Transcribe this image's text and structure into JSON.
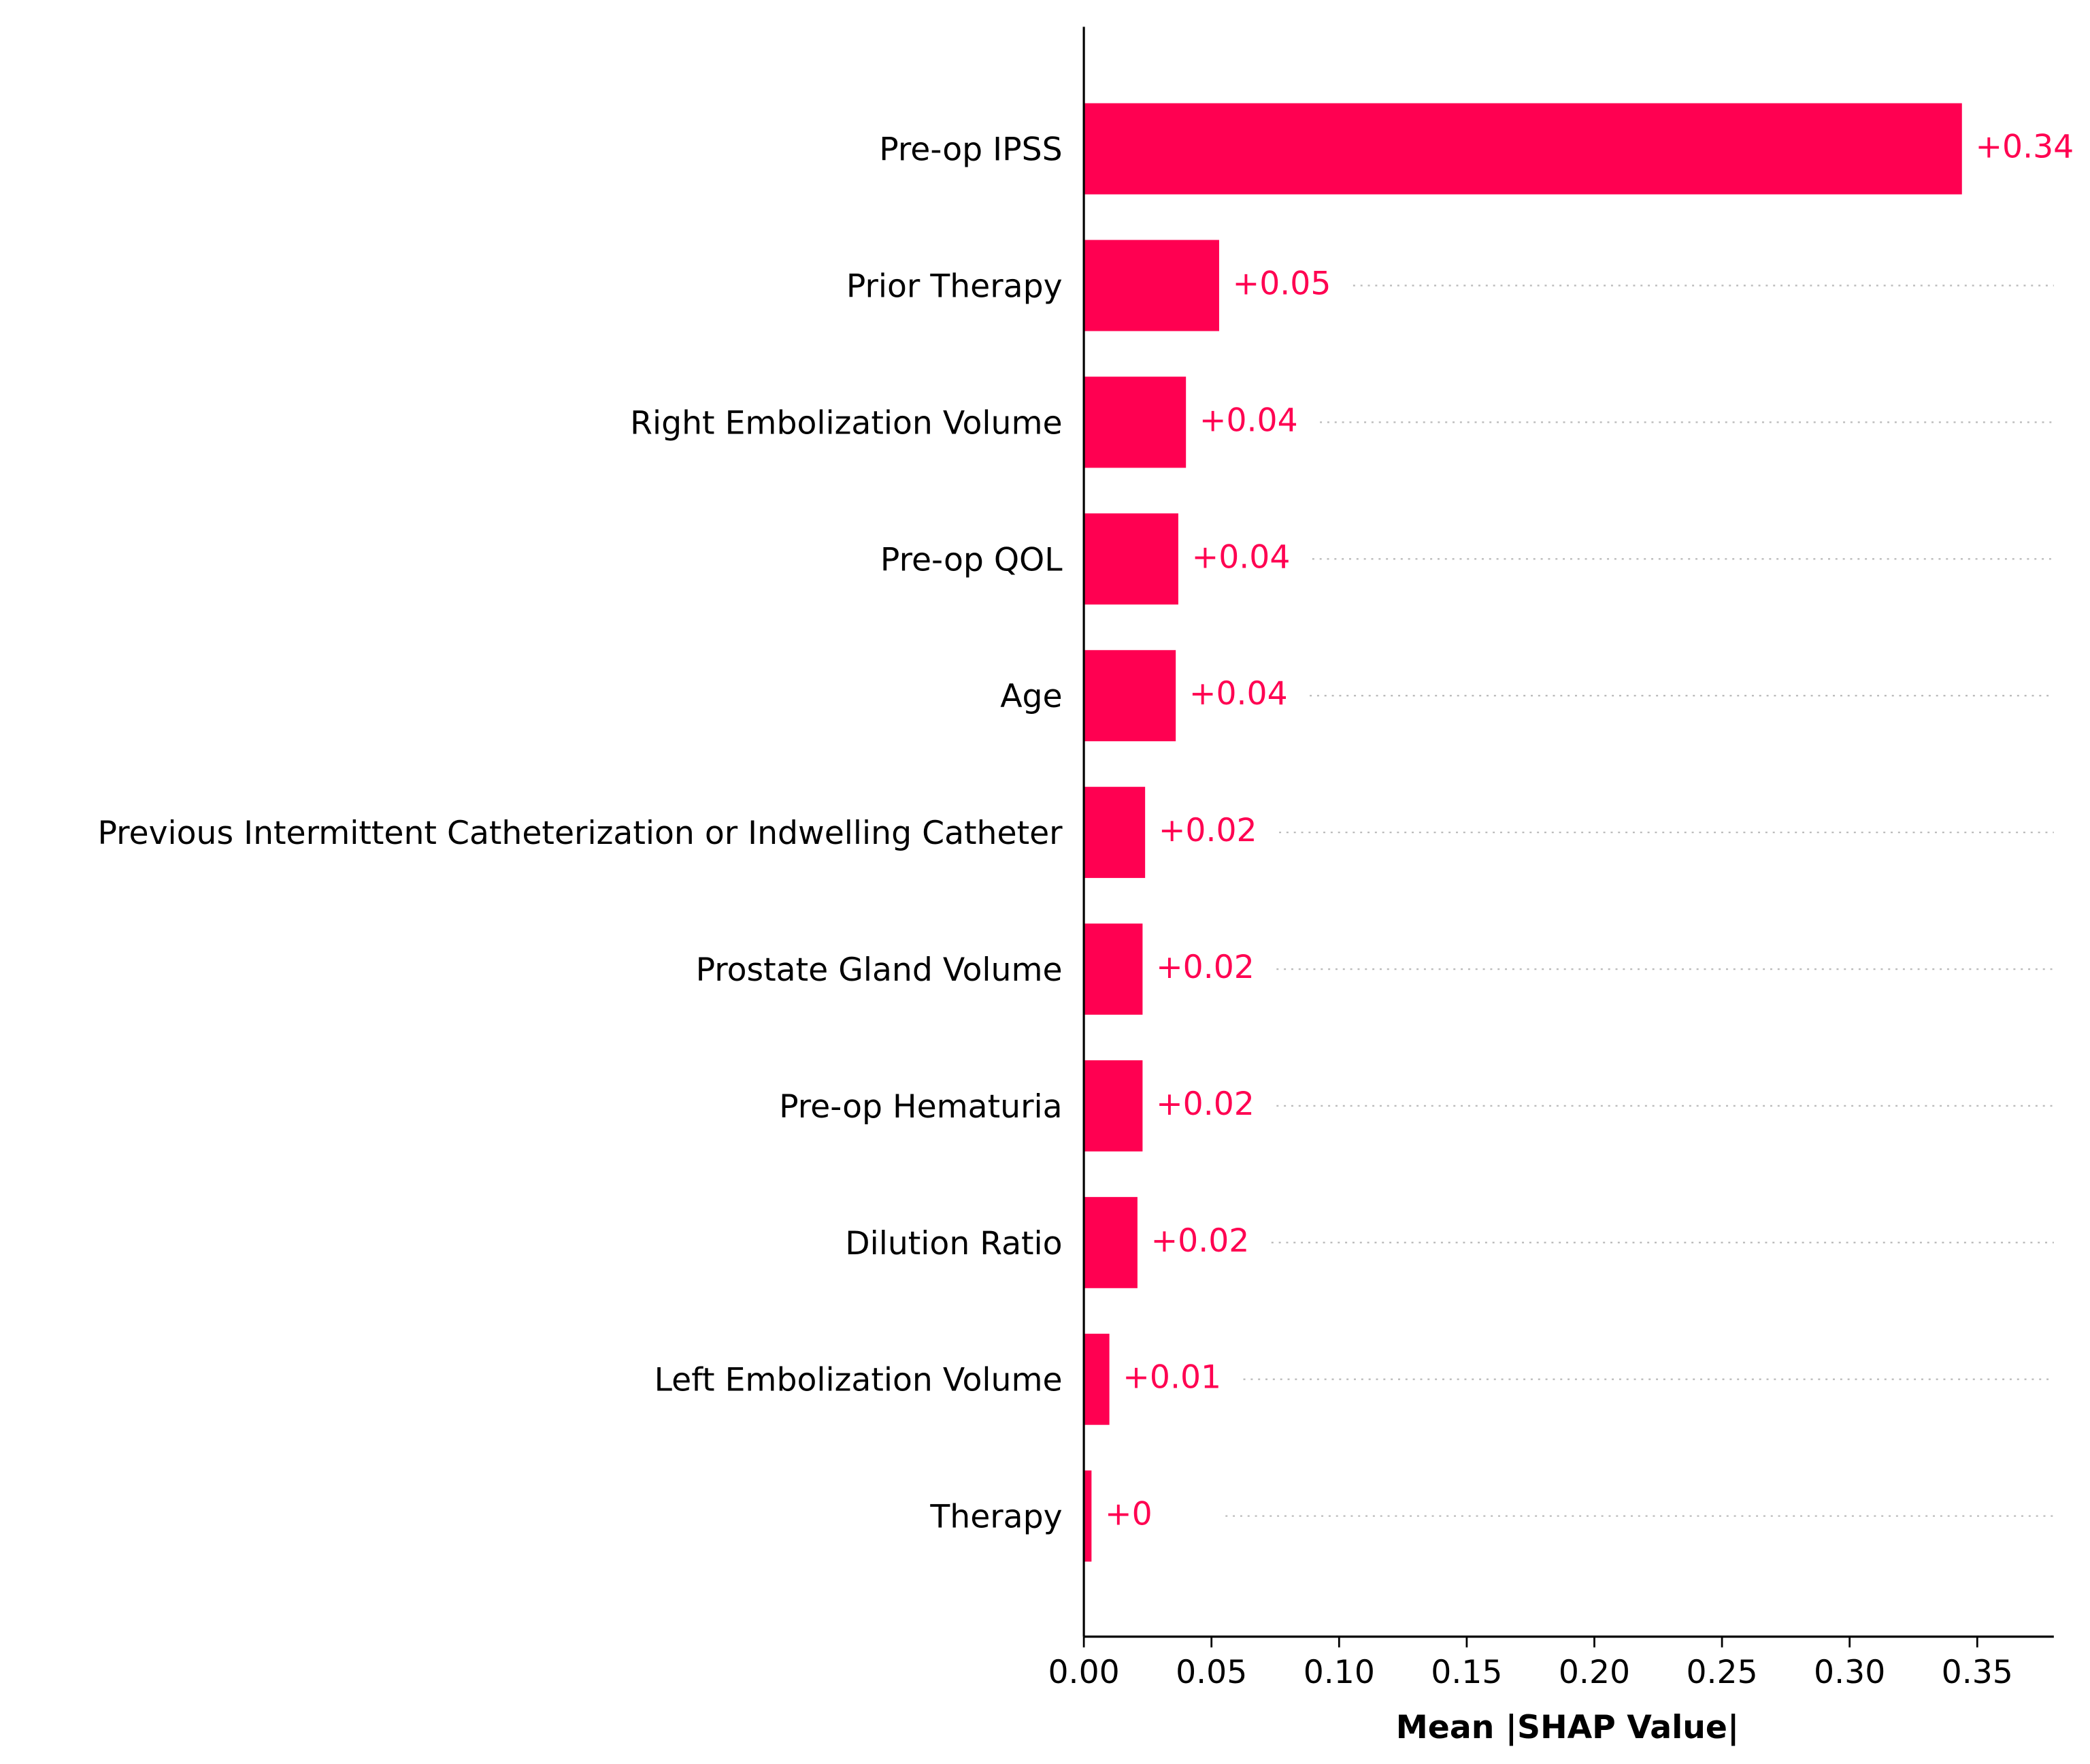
{
  "chart_data": {
    "type": "bar",
    "orientation": "horizontal",
    "xlabel": "Mean |SHAP Value|",
    "categories": [
      "Pre-op IPSS",
      "Prior Therapy",
      "Right Embolization Volume",
      "Pre-op QOL",
      "Age",
      "Previous Intermittent Catheterization or Indwelling Catheter",
      "Prostate Gland Volume",
      "Pre-op Hematuria",
      "Dilution Ratio",
      "Left Embolization Volume",
      "Therapy"
    ],
    "values": [
      0.344,
      0.053,
      0.04,
      0.037,
      0.036,
      0.024,
      0.023,
      0.023,
      0.021,
      0.01,
      0.003
    ],
    "value_labels": [
      "+0.34",
      "+0.05",
      "+0.04",
      "+0.04",
      "+0.04",
      "+0.02",
      "+0.02",
      "+0.02",
      "+0.02",
      "+0.01",
      "+0"
    ],
    "color": "#ff0051",
    "xlim": [
      0,
      0.38
    ],
    "xticks": [
      {
        "value": 0,
        "label": "0.00"
      },
      0.05,
      {
        "value": 0.1,
        "label": "0.10"
      },
      0.15,
      {
        "value": 0.2,
        "label": "0.20"
      },
      0.25,
      {
        "value": 0.3,
        "label": "0.30"
      },
      0.35
    ]
  }
}
